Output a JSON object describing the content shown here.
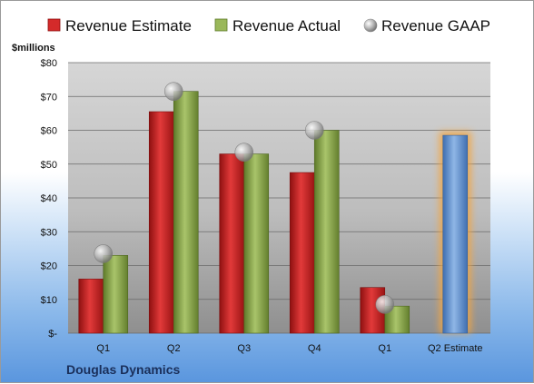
{
  "chart_data": {
    "type": "bar",
    "ylabel": "$millions",
    "categories": [
      "Q1",
      "Q2",
      "Q3",
      "Q4",
      "Q1",
      "Q2 Estimate"
    ],
    "ylim": [
      0,
      80
    ],
    "y_ticks": [
      "$-",
      "$10",
      "$20",
      "$30",
      "$40",
      "$50",
      "$60",
      "$70",
      "$80"
    ],
    "grid": true,
    "legend_position": "top",
    "series": [
      {
        "name": "Revenue Estimate",
        "values": [
          16,
          65.5,
          53,
          47.5,
          13.5,
          null
        ],
        "color": "#cc2222"
      },
      {
        "name": "Revenue Actual",
        "values": [
          23,
          71.5,
          53,
          60,
          8,
          null
        ],
        "color": "#8aa34a"
      },
      {
        "name": "Revenue GAAP",
        "values": [
          23.5,
          71.5,
          53.5,
          60,
          8.5,
          null
        ],
        "color": "#b8b8b8"
      },
      {
        "name": "",
        "values": [
          null,
          null,
          null,
          null,
          null,
          58.5
        ],
        "color": "#6f9fd8"
      }
    ]
  },
  "company": "Douglas Dynamics"
}
